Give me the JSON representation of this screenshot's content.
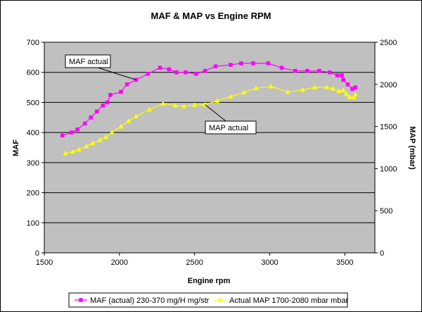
{
  "chart_data": {
    "type": "line",
    "title": "MAF & MAP vs Engine RPM",
    "xlabel": "Engine rpm",
    "ylabel": "MAF",
    "y2label": "MAP (mbar)",
    "xlim": [
      1500,
      3700
    ],
    "ylim": [
      0,
      700
    ],
    "y2lim": [
      0,
      2500
    ],
    "xticks": [
      1500,
      2000,
      2500,
      3000,
      3500
    ],
    "yticks": [
      0,
      100,
      200,
      300,
      400,
      500,
      600,
      700
    ],
    "y2ticks": [
      0,
      500,
      1000,
      1500,
      2000,
      2500
    ],
    "grid": true,
    "legend_position": "bottom",
    "plot_background": "#c0c0c0",
    "series": [
      {
        "name": "MAF (actual) 230-370 mg/H  mg/str",
        "axis": "left",
        "color": "#ff00ff",
        "marker": "square",
        "x": [
          1620,
          1680,
          1720,
          1770,
          1810,
          1850,
          1890,
          1920,
          1940,
          2010,
          2050,
          2110,
          2190,
          2270,
          2330,
          2380,
          2440,
          2510,
          2570,
          2640,
          2740,
          2810,
          2890,
          2990,
          3080,
          3170,
          3250,
          3330,
          3400,
          3450,
          3480,
          3490,
          3520,
          3550,
          3570
        ],
        "y": [
          390,
          400,
          410,
          430,
          450,
          470,
          490,
          500,
          525,
          535,
          560,
          575,
          595,
          615,
          610,
          600,
          600,
          595,
          605,
          620,
          625,
          630,
          630,
          630,
          615,
          605,
          605,
          605,
          600,
          590,
          590,
          575,
          560,
          545,
          550
        ]
      },
      {
        "name": "Actual MAP 1700-2080 mbar  mbar",
        "axis": "right",
        "color": "#ffff00",
        "marker": "triangle",
        "x": [
          1640,
          1690,
          1730,
          1780,
          1820,
          1870,
          1910,
          1950,
          2010,
          2060,
          2110,
          2200,
          2290,
          2370,
          2430,
          2500,
          2570,
          2650,
          2740,
          2830,
          2910,
          3010,
          3120,
          3220,
          3300,
          3380,
          3420,
          3460,
          3490,
          3510,
          3530,
          3560,
          3570
        ],
        "y": [
          1180,
          1200,
          1225,
          1265,
          1300,
          1340,
          1375,
          1430,
          1500,
          1565,
          1620,
          1700,
          1770,
          1750,
          1740,
          1755,
          1760,
          1805,
          1855,
          1905,
          1955,
          1975,
          1910,
          1935,
          1965,
          1965,
          1950,
          1920,
          1930,
          1885,
          1850,
          1845,
          1880
        ]
      }
    ],
    "annotations": [
      {
        "text": "MAF actual",
        "series": 0
      },
      {
        "text": "MAP actual",
        "series": 1
      }
    ]
  }
}
